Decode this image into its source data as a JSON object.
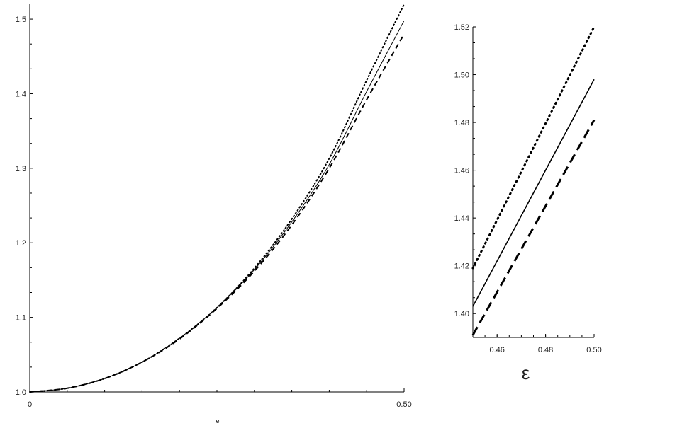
{
  "chart_data": [
    {
      "type": "line",
      "xlabel": "e",
      "ylabel": "",
      "xlim": [
        0,
        0.5
      ],
      "ylim": [
        1.0,
        1.52
      ],
      "x_ticks": [
        0,
        0.5
      ],
      "x_tick_labels": [
        "0",
        "0.50"
      ],
      "y_ticks": [
        1.0,
        1.1,
        1.2,
        1.3,
        1.4,
        1.5
      ],
      "y_tick_labels": [
        "1.0",
        "1.1",
        "1.2",
        "1.3",
        "1.4",
        "1.5"
      ],
      "grid": false,
      "series": [
        {
          "style": "solid",
          "x": [
            0,
            0.05,
            0.1,
            0.15,
            0.2,
            0.25,
            0.3,
            0.35,
            0.4,
            0.45,
            0.5
          ],
          "values": [
            1.0,
            1.005,
            1.018,
            1.04,
            1.072,
            1.113,
            1.164,
            1.228,
            1.305,
            1.403,
            1.498
          ]
        },
        {
          "style": "dotted",
          "x": [
            0,
            0.05,
            0.1,
            0.15,
            0.2,
            0.25,
            0.3,
            0.35,
            0.4,
            0.45,
            0.5
          ],
          "values": [
            1.0,
            1.005,
            1.018,
            1.04,
            1.072,
            1.113,
            1.166,
            1.232,
            1.313,
            1.418,
            1.52
          ]
        },
        {
          "style": "dashed",
          "x": [
            0,
            0.05,
            0.1,
            0.15,
            0.2,
            0.25,
            0.3,
            0.35,
            0.4,
            0.45,
            0.5
          ],
          "values": [
            1.0,
            1.005,
            1.018,
            1.04,
            1.071,
            1.112,
            1.162,
            1.224,
            1.3,
            1.392,
            1.48
          ]
        }
      ]
    },
    {
      "type": "line",
      "xlabel": "ε",
      "ylabel": "",
      "xlim": [
        0.45,
        0.5
      ],
      "ylim": [
        1.39,
        1.52
      ],
      "x_ticks": [
        0.46,
        0.48,
        0.5
      ],
      "x_tick_labels": [
        "0.46",
        "0.48",
        "0.50"
      ],
      "y_ticks": [
        1.4,
        1.42,
        1.44,
        1.46,
        1.48,
        1.5,
        1.52
      ],
      "y_tick_labels": [
        "1.40",
        "1.42",
        "1.44",
        "1.46",
        "1.48",
        "1.50",
        "1.52"
      ],
      "grid": false,
      "series": [
        {
          "style": "dotted",
          "x": [
            0.45,
            0.5
          ],
          "values": [
            1.419,
            1.52
          ]
        },
        {
          "style": "solid",
          "x": [
            0.45,
            0.5
          ],
          "values": [
            1.403,
            1.498
          ]
        },
        {
          "style": "dashed",
          "x": [
            0.45,
            0.5
          ],
          "values": [
            1.391,
            1.481
          ]
        }
      ]
    }
  ]
}
